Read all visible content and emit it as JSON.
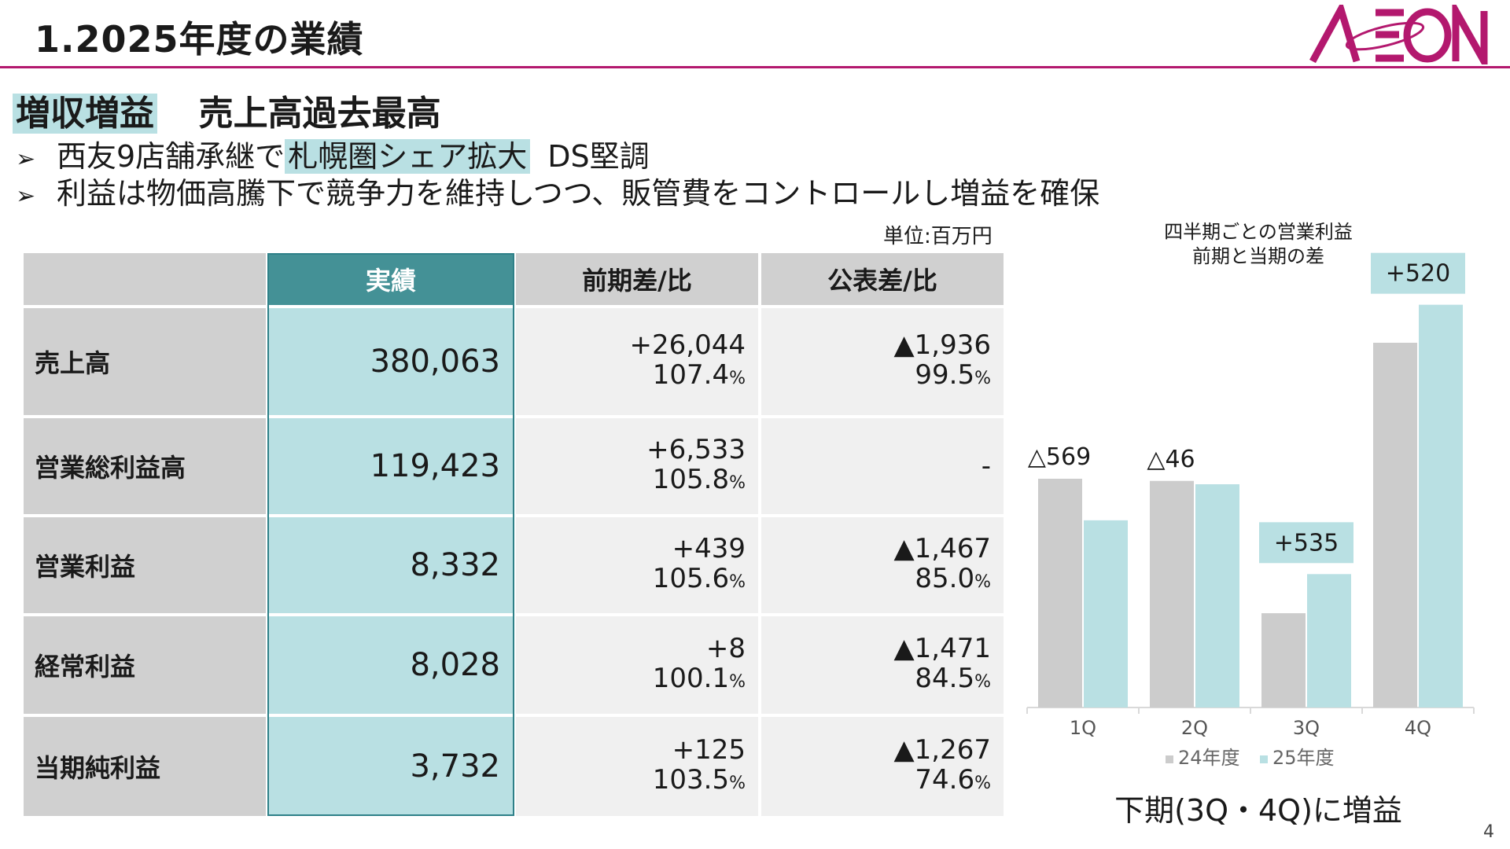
{
  "header": {
    "title": "1.2025年度の業績",
    "logo_text": "AEON",
    "brand_color": "#b3186e"
  },
  "headline": {
    "highlight": "増収増益",
    "rest": "売上高過去最高"
  },
  "bullets": [
    {
      "marker": "➢",
      "before": "西友9店舗承継で",
      "highlight": "札幌圏シェア拡大",
      "after": "DS堅調"
    },
    {
      "marker": "➢",
      "text": "利益は物価高騰下で競争力を維持しつつ、販管費をコントロールし増益を確保"
    }
  ],
  "table": {
    "unit": "単位:百万円",
    "headers": [
      "",
      "実績",
      "前期差/比",
      "公表差/比"
    ],
    "rows": [
      {
        "label": "売上高",
        "actual": "380,063",
        "yoy_diff": "+26,044",
        "yoy_ratio": "107.4",
        "plan_diff": "▲1,936",
        "plan_ratio": "99.5"
      },
      {
        "label": "営業総利益高",
        "actual": "119,423",
        "yoy_diff": "+6,533",
        "yoy_ratio": "105.8",
        "plan_diff": "-",
        "plan_ratio": ""
      },
      {
        "label": "営業利益",
        "actual": "8,332",
        "yoy_diff": "+439",
        "yoy_ratio": "105.6",
        "plan_diff": "▲1,467",
        "plan_ratio": "85.0"
      },
      {
        "label": "経常利益",
        "actual": "8,028",
        "yoy_diff": "+8",
        "yoy_ratio": "100.1",
        "plan_diff": "▲1,471",
        "plan_ratio": "84.5"
      },
      {
        "label": "当期純利益",
        "actual": "3,732",
        "yoy_diff": "+125",
        "yoy_ratio": "103.5",
        "plan_diff": "▲1,267",
        "plan_ratio": "74.6"
      }
    ],
    "percent_unit": "%",
    "colors": {
      "header_bg": "#d0d0d0",
      "actual_header_bg": "#449196",
      "actual_bg": "#b9e0e3",
      "diff_bg": "#f0f0f0"
    }
  },
  "chart_data": {
    "type": "bar",
    "title": "四半期ごとの営業利益\n前期と当期の差",
    "categories": [
      "1Q",
      "2Q",
      "3Q",
      "4Q"
    ],
    "series": [
      {
        "name": "24年度",
        "values": [
          3130,
          3100,
          1290,
          4990
        ],
        "color": "#cccccc"
      },
      {
        "name": "25年度",
        "values": [
          2561,
          3054,
          1825,
          5510
        ],
        "color": "#b9e0e3"
      }
    ],
    "annotations": [
      {
        "category": "1Q",
        "text": "△569",
        "boxed": false
      },
      {
        "category": "2Q",
        "text": "△46",
        "boxed": false
      },
      {
        "category": "3Q",
        "text": "+535",
        "boxed": true
      },
      {
        "category": "4Q",
        "text": "+520",
        "boxed": true
      }
    ],
    "ylim": [
      0,
      5700
    ],
    "grid": false,
    "legend_position": "bottom"
  },
  "conclusion": "下期(3Q・4Q)に増益",
  "page_number": "4"
}
